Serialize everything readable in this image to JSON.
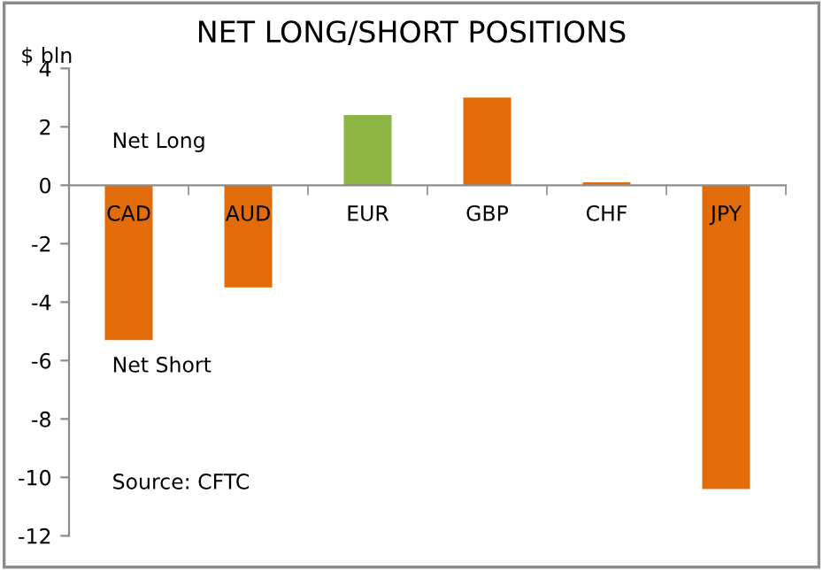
{
  "chart_data": {
    "type": "bar",
    "title": "NET LONG/SHORT POSITIONS",
    "ylabel": "$ bln",
    "categories": [
      "CAD",
      "AUD",
      "EUR",
      "GBP",
      "CHF",
      "JPY"
    ],
    "values": [
      -5.3,
      -3.5,
      2.4,
      3.0,
      0.1,
      -10.4
    ],
    "colors": [
      "#e36c0a",
      "#e36c0a",
      "#8db543",
      "#e36c0a",
      "#e36c0a",
      "#e36c0a"
    ],
    "ylim": [
      -12,
      4
    ],
    "yticks": [
      -12,
      -10,
      -8,
      -6,
      -4,
      -2,
      0,
      2,
      4
    ],
    "grid": false,
    "legend": false,
    "annotations": [
      "Net Long",
      "Net Short",
      "Source: CFTC"
    ]
  }
}
